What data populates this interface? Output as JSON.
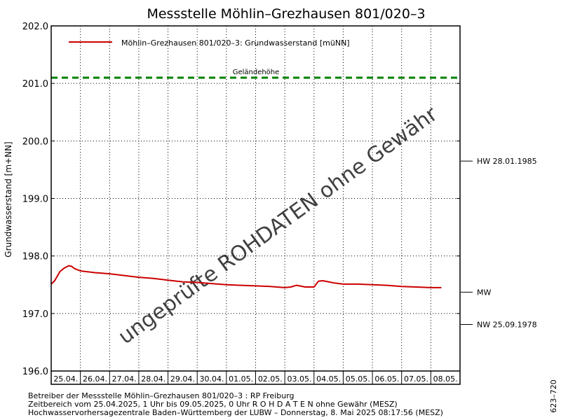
{
  "colors": {
    "series": "#cc0000",
    "ground_level": "#008000",
    "watermark": "#999999",
    "frame": "#000000"
  },
  "chart_data": {
    "type": "line",
    "title": "Messstelle Möhlin–Grezhausen 801/020–3",
    "ylabel": "Grundwasserstand [m+NN]",
    "ylim": [
      196.0,
      202.0
    ],
    "y_ticks": [
      "202.0",
      "201.0",
      "200.0",
      "199.0",
      "198.0",
      "197.0",
      "196.0"
    ],
    "x_range_days": [
      0,
      14.0
    ],
    "x_ticks": [
      "25.04.",
      "26.04.",
      "27.04.",
      "28.04.",
      "29.04.",
      "30.04.",
      "01.05.",
      "02.05.",
      "03.05.",
      "04.05.",
      "05.05.",
      "06.05.",
      "07.05.",
      "08.05."
    ],
    "grid": true,
    "legend": "top-left",
    "series": [
      {
        "name": "Möhlin–Grezhausen 801/020–3: Grundwasserstand [müNN]",
        "x": [
          0.0,
          0.12,
          0.3,
          0.45,
          0.6,
          0.7,
          0.8,
          1.0,
          1.5,
          2.0,
          2.5,
          3.0,
          3.5,
          4.0,
          4.5,
          5.0,
          5.5,
          6.0,
          6.5,
          7.0,
          7.5,
          8.0,
          8.2,
          8.4,
          8.5,
          8.7,
          9.0,
          9.15,
          9.3,
          9.5,
          9.7,
          10.0,
          10.5,
          11.0,
          11.5,
          12.0,
          12.5,
          13.0,
          13.35
        ],
        "y": [
          197.51,
          197.57,
          197.73,
          197.79,
          197.83,
          197.82,
          197.78,
          197.74,
          197.71,
          197.69,
          197.66,
          197.63,
          197.61,
          197.58,
          197.55,
          197.54,
          197.52,
          197.5,
          197.49,
          197.48,
          197.47,
          197.45,
          197.46,
          197.49,
          197.48,
          197.46,
          197.46,
          197.56,
          197.57,
          197.55,
          197.53,
          197.51,
          197.51,
          197.5,
          197.49,
          197.47,
          197.46,
          197.45,
          197.45
        ]
      }
    ],
    "reference_lines": [
      {
        "label": "Geländehöhe",
        "value": 201.1,
        "style": "dashed"
      }
    ],
    "right_markers": [
      {
        "label": "HW 28.01.1985",
        "value": 199.65
      },
      {
        "label": "MW",
        "value": 197.37
      },
      {
        "label": "NW 25.09.1978",
        "value": 196.81
      }
    ],
    "watermark": "ungeprüfte ROHDATEN ohne Gewähr",
    "footer": [
      "Betreiber der Messstelle Möhlin–Grezhausen 801/020–3 : RP Freiburg",
      "Zeitbereich vom 25.04.2025, 1 Uhr bis 09.05.2025, 0 Uhr   R O H D A T E N ohne Gewähr (MESZ)",
      "Hochwasservorhersagezentrale Baden–Württemberg der LUBW – Donnerstag, 8. Mai 2025 08:17:56 (MESZ)"
    ],
    "side_code": "623–720"
  }
}
